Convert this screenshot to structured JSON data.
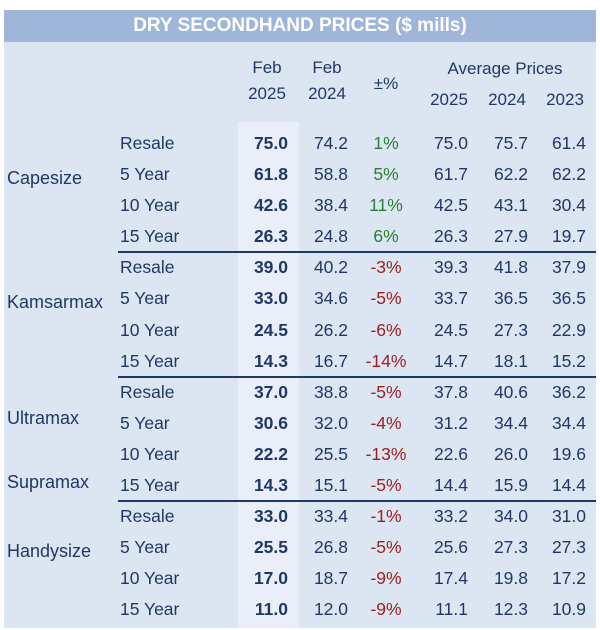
{
  "title": "DRY SECONDHAND PRICES ($ mills)",
  "headers": {
    "feb25": [
      "Feb",
      "2025"
    ],
    "feb24": [
      "Feb",
      "2024"
    ],
    "pct": "±%",
    "avg": "Average Prices",
    "years": [
      "2025",
      "2024",
      "2023"
    ]
  },
  "groups": [
    {
      "labels": [
        "Capesize"
      ],
      "rows": [
        {
          "age": "Resale",
          "feb25": "75.0",
          "feb24": "74.2",
          "pct": "1%",
          "sign": "pos",
          "a25": "75.0",
          "a24": "75.7",
          "a23": "61.4"
        },
        {
          "age": "5 Year",
          "feb25": "61.8",
          "feb24": "58.8",
          "pct": "5%",
          "sign": "pos",
          "a25": "61.7",
          "a24": "62.2",
          "a23": "62.2"
        },
        {
          "age": "10 Year",
          "feb25": "42.6",
          "feb24": "38.4",
          "pct": "11%",
          "sign": "pos",
          "a25": "42.5",
          "a24": "43.1",
          "a23": "30.4"
        },
        {
          "age": "15 Year",
          "feb25": "26.3",
          "feb24": "24.8",
          "pct": "6%",
          "sign": "pos",
          "a25": "26.3",
          "a24": "27.9",
          "a23": "19.7"
        }
      ]
    },
    {
      "labels": [
        "Kamsarmax"
      ],
      "rows": [
        {
          "age": "Resale",
          "feb25": "39.0",
          "feb24": "40.2",
          "pct": "-3%",
          "sign": "neg",
          "a25": "39.3",
          "a24": "41.8",
          "a23": "37.9"
        },
        {
          "age": "5 Year",
          "feb25": "33.0",
          "feb24": "34.6",
          "pct": "-5%",
          "sign": "neg",
          "a25": "33.7",
          "a24": "36.5",
          "a23": "36.5"
        },
        {
          "age": "10 Year",
          "feb25": "24.5",
          "feb24": "26.2",
          "pct": "-6%",
          "sign": "neg",
          "a25": "24.5",
          "a24": "27.3",
          "a23": "22.9"
        },
        {
          "age": "15 Year",
          "feb25": "14.3",
          "feb24": "16.7",
          "pct": "-14%",
          "sign": "neg",
          "a25": "14.7",
          "a24": "18.1",
          "a23": "15.2"
        }
      ]
    },
    {
      "labels": [
        "Ultramax",
        "Supramax"
      ],
      "rows": [
        {
          "age": "Resale",
          "feb25": "37.0",
          "feb24": "38.8",
          "pct": "-5%",
          "sign": "neg",
          "a25": "37.8",
          "a24": "40.6",
          "a23": "36.2"
        },
        {
          "age": "5 Year",
          "feb25": "30.6",
          "feb24": "32.0",
          "pct": "-4%",
          "sign": "neg",
          "a25": "31.2",
          "a24": "34.4",
          "a23": "34.4"
        },
        {
          "age": "10 Year",
          "feb25": "22.2",
          "feb24": "25.5",
          "pct": "-13%",
          "sign": "neg",
          "a25": "22.6",
          "a24": "26.0",
          "a23": "19.6"
        },
        {
          "age": "15 Year",
          "feb25": "14.3",
          "feb24": "15.1",
          "pct": "-5%",
          "sign": "neg",
          "a25": "14.4",
          "a24": "15.9",
          "a23": "14.4"
        }
      ]
    },
    {
      "labels": [
        "Handysize"
      ],
      "rows": [
        {
          "age": "Resale",
          "feb25": "33.0",
          "feb24": "33.4",
          "pct": "-1%",
          "sign": "neg",
          "a25": "33.2",
          "a24": "34.0",
          "a23": "31.0"
        },
        {
          "age": "5 Year",
          "feb25": "25.5",
          "feb24": "26.8",
          "pct": "-5%",
          "sign": "neg",
          "a25": "25.6",
          "a24": "27.3",
          "a23": "27.3"
        },
        {
          "age": "10 Year",
          "feb25": "17.0",
          "feb24": "18.7",
          "pct": "-9%",
          "sign": "neg",
          "a25": "17.4",
          "a24": "19.8",
          "a23": "17.2"
        },
        {
          "age": "15 Year",
          "feb25": "11.0",
          "feb24": "12.0",
          "pct": "-9%",
          "sign": "neg",
          "a25": "11.1",
          "a24": "12.3",
          "a23": "10.9"
        }
      ]
    }
  ],
  "colors": {
    "header_bg": "#9fb5d9",
    "body_bg": "#dce6f2",
    "positive": "#2e7d32",
    "negative": "#9c2020",
    "text": "#1f3864"
  }
}
